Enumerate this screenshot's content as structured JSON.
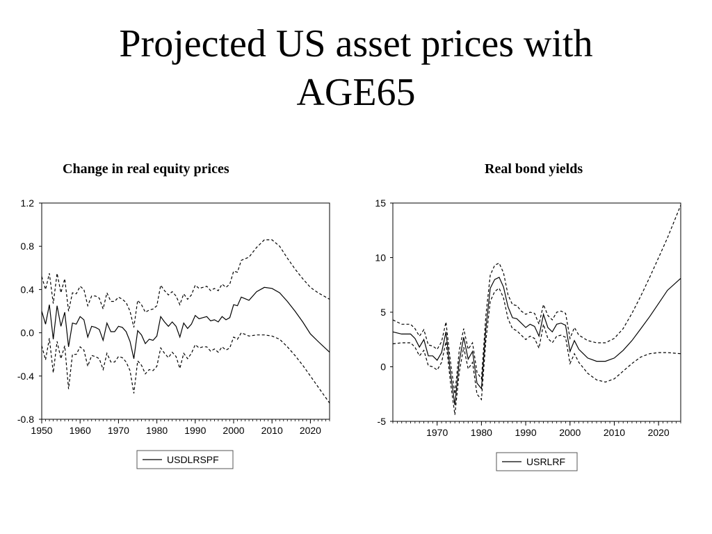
{
  "slide": {
    "title_line1": "Projected US asset prices with",
    "title_line2": "AGE65"
  },
  "chart_data": [
    {
      "type": "line",
      "title": "Change in real equity prices",
      "xlim": [
        1950,
        2025
      ],
      "ylim": [
        -0.8,
        1.2
      ],
      "x_ticks": [
        1950,
        1960,
        1970,
        1980,
        1990,
        2000,
        2010,
        2020
      ],
      "x_tick_labels": [
        "1950",
        "1960",
        "1970",
        "1980",
        "1990",
        "2000",
        "2010",
        "2020"
      ],
      "y_ticks": [
        -0.8,
        -0.4,
        0.0,
        0.4,
        0.8,
        1.2
      ],
      "y_tick_labels": [
        "-0.8",
        "-0.4",
        "0.0",
        "0.4",
        "0.8",
        "1.2"
      ],
      "legend": {
        "placement": "bottom-center",
        "entries": [
          "USDLRSPF"
        ]
      },
      "series": [
        {
          "name": "USDLRSPF",
          "style": "solid",
          "x": [
            1950,
            1951,
            1952,
            1953,
            1954,
            1955,
            1956,
            1957,
            1958,
            1959,
            1960,
            1961,
            1962,
            1963,
            1964,
            1965,
            1966,
            1967,
            1968,
            1969,
            1970,
            1971,
            1972,
            1973,
            1974,
            1975,
            1976,
            1977,
            1978,
            1979,
            1980,
            1981,
            1982,
            1983,
            1984,
            1985,
            1986,
            1987,
            1988,
            1989,
            1990,
            1991,
            1992,
            1993,
            1994,
            1995,
            1996,
            1997,
            1998,
            1999,
            2000,
            2001,
            2002,
            2004,
            2006,
            2008,
            2010,
            2012,
            2014,
            2016,
            2018,
            2020,
            2022,
            2025
          ],
          "y": [
            0.2,
            0.08,
            0.26,
            -0.06,
            0.25,
            0.06,
            0.19,
            -0.13,
            0.09,
            0.08,
            0.15,
            0.12,
            -0.04,
            0.06,
            0.05,
            0.03,
            -0.07,
            0.09,
            0.01,
            0.01,
            0.06,
            0.05,
            0.01,
            -0.08,
            -0.24,
            0.02,
            -0.02,
            -0.1,
            -0.06,
            -0.07,
            -0.03,
            0.15,
            0.1,
            0.06,
            0.1,
            0.06,
            -0.04,
            0.09,
            0.04,
            0.08,
            0.16,
            0.13,
            0.14,
            0.15,
            0.11,
            0.12,
            0.1,
            0.15,
            0.12,
            0.14,
            0.26,
            0.25,
            0.33,
            0.3,
            0.38,
            0.42,
            0.41,
            0.37,
            0.29,
            0.2,
            0.1,
            -0.01,
            -0.08,
            -0.18
          ]
        },
        {
          "name": "",
          "style": "dashed",
          "x": [
            1950,
            1951,
            1952,
            1953,
            1954,
            1955,
            1956,
            1957,
            1958,
            1959,
            1960,
            1961,
            1962,
            1963,
            1964,
            1965,
            1966,
            1967,
            1968,
            1969,
            1970,
            1971,
            1972,
            1973,
            1974,
            1975,
            1976,
            1977,
            1978,
            1979,
            1980,
            1981,
            1982,
            1983,
            1984,
            1985,
            1986,
            1987,
            1988,
            1989,
            1990,
            1991,
            1992,
            1993,
            1994,
            1995,
            1996,
            1997,
            1998,
            1999,
            2000,
            2001,
            2002,
            2004,
            2006,
            2008,
            2010,
            2012,
            2014,
            2016,
            2018,
            2020,
            2022,
            2025
          ],
          "y": [
            0.52,
            0.4,
            0.55,
            0.27,
            0.55,
            0.37,
            0.5,
            0.2,
            0.37,
            0.36,
            0.43,
            0.4,
            0.25,
            0.34,
            0.34,
            0.32,
            0.22,
            0.37,
            0.29,
            0.29,
            0.33,
            0.31,
            0.28,
            0.2,
            0.05,
            0.3,
            0.26,
            0.19,
            0.21,
            0.22,
            0.25,
            0.44,
            0.39,
            0.35,
            0.38,
            0.34,
            0.26,
            0.36,
            0.31,
            0.35,
            0.44,
            0.41,
            0.42,
            0.43,
            0.39,
            0.41,
            0.39,
            0.45,
            0.42,
            0.45,
            0.57,
            0.56,
            0.67,
            0.7,
            0.79,
            0.86,
            0.86,
            0.8,
            0.69,
            0.59,
            0.5,
            0.42,
            0.37,
            0.31
          ]
        },
        {
          "name": "",
          "style": "dashed",
          "x": [
            1950,
            1951,
            1952,
            1953,
            1954,
            1955,
            1956,
            1957,
            1958,
            1959,
            1960,
            1961,
            1962,
            1963,
            1964,
            1965,
            1966,
            1967,
            1968,
            1969,
            1970,
            1971,
            1972,
            1973,
            1974,
            1975,
            1976,
            1977,
            1978,
            1979,
            1980,
            1981,
            1982,
            1983,
            1984,
            1985,
            1986,
            1987,
            1988,
            1989,
            1990,
            1991,
            1992,
            1993,
            1994,
            1995,
            1996,
            1997,
            1998,
            1999,
            2000,
            2001,
            2002,
            2004,
            2006,
            2008,
            2010,
            2012,
            2014,
            2016,
            2018,
            2020,
            2022,
            2025
          ],
          "y": [
            -0.12,
            -0.25,
            -0.05,
            -0.37,
            -0.08,
            -0.24,
            -0.12,
            -0.52,
            -0.2,
            -0.2,
            -0.13,
            -0.16,
            -0.31,
            -0.21,
            -0.22,
            -0.24,
            -0.34,
            -0.19,
            -0.27,
            -0.27,
            -0.22,
            -0.23,
            -0.27,
            -0.35,
            -0.56,
            -0.26,
            -0.3,
            -0.38,
            -0.34,
            -0.35,
            -0.31,
            -0.14,
            -0.19,
            -0.23,
            -0.18,
            -0.22,
            -0.33,
            -0.19,
            -0.24,
            -0.19,
            -0.11,
            -0.14,
            -0.13,
            -0.13,
            -0.17,
            -0.15,
            -0.18,
            -0.13,
            -0.16,
            -0.14,
            -0.04,
            -0.06,
            0.0,
            -0.03,
            -0.02,
            -0.02,
            -0.03,
            -0.06,
            -0.13,
            -0.21,
            -0.3,
            -0.4,
            -0.5,
            -0.65
          ]
        }
      ]
    },
    {
      "type": "line",
      "title": "Real bond yields",
      "xlim": [
        1960,
        2025
      ],
      "ylim": [
        -5,
        15
      ],
      "x_ticks": [
        1970,
        1980,
        1990,
        2000,
        2010,
        2020
      ],
      "x_tick_labels": [
        "1970",
        "1980",
        "1990",
        "2000",
        "2010",
        "2020"
      ],
      "y_ticks": [
        -5,
        0,
        5,
        10,
        15
      ],
      "y_tick_labels": [
        "-5",
        "0",
        "5",
        "10",
        "15"
      ],
      "legend": {
        "placement": "bottom-center",
        "entries": [
          "USRLRF"
        ]
      },
      "series": [
        {
          "name": "USRLRF",
          "style": "solid",
          "x": [
            1960,
            1962,
            1964,
            1965,
            1966,
            1967,
            1968,
            1969,
            1970,
            1971,
            1972,
            1973,
            1974,
            1975,
            1976,
            1977,
            1978,
            1979,
            1980,
            1981,
            1982,
            1983,
            1984,
            1985,
            1986,
            1987,
            1988,
            1989,
            1990,
            1991,
            1992,
            1993,
            1994,
            1995,
            1996,
            1997,
            1998,
            1999,
            2000,
            2001,
            2002,
            2004,
            2006,
            2008,
            2010,
            2012,
            2014,
            2016,
            2018,
            2020,
            2022,
            2025
          ],
          "y": [
            3.2,
            3.0,
            3.0,
            2.6,
            1.8,
            2.5,
            1.0,
            1.0,
            0.6,
            1.3,
            3.2,
            -0.5,
            -3.5,
            0.5,
            2.7,
            0.7,
            1.4,
            -1.5,
            -2.0,
            3.5,
            7.2,
            8.0,
            8.2,
            7.3,
            5.5,
            4.5,
            4.4,
            4.0,
            3.6,
            3.9,
            3.7,
            2.8,
            4.8,
            3.6,
            3.2,
            3.9,
            4.0,
            3.8,
            1.4,
            2.4,
            1.6,
            0.8,
            0.5,
            0.5,
            0.8,
            1.5,
            2.4,
            3.5,
            4.6,
            5.8,
            7.0,
            8.1
          ]
        },
        {
          "name": "",
          "style": "dashed",
          "x": [
            1960,
            1962,
            1964,
            1965,
            1966,
            1967,
            1968,
            1969,
            1970,
            1971,
            1972,
            1973,
            1974,
            1975,
            1976,
            1977,
            1978,
            1979,
            1980,
            1981,
            1982,
            1983,
            1984,
            1985,
            1986,
            1987,
            1988,
            1989,
            1990,
            1991,
            1992,
            1993,
            1994,
            1995,
            1996,
            1997,
            1998,
            1999,
            2000,
            2001,
            2002,
            2004,
            2006,
            2008,
            2010,
            2012,
            2014,
            2016,
            2018,
            2020,
            2022,
            2025
          ],
          "y": [
            4.3,
            3.9,
            3.9,
            3.5,
            2.8,
            3.4,
            2.0,
            1.9,
            1.6,
            2.3,
            4.1,
            0.5,
            -2.5,
            1.5,
            3.5,
            1.6,
            2.2,
            -0.5,
            -1.1,
            4.7,
            8.4,
            9.3,
            9.5,
            8.6,
            6.6,
            5.7,
            5.6,
            5.1,
            4.8,
            5.0,
            4.9,
            3.9,
            5.7,
            4.7,
            4.3,
            5.0,
            5.1,
            4.9,
            2.6,
            3.6,
            2.9,
            2.4,
            2.2,
            2.2,
            2.6,
            3.5,
            4.9,
            6.5,
            8.2,
            10.0,
            11.8,
            14.8
          ]
        },
        {
          "name": "",
          "style": "dashed",
          "x": [
            1960,
            1962,
            1964,
            1965,
            1966,
            1967,
            1968,
            1969,
            1970,
            1971,
            1972,
            1973,
            1974,
            1975,
            1976,
            1977,
            1978,
            1979,
            1980,
            1981,
            1982,
            1983,
            1984,
            1985,
            1986,
            1987,
            1988,
            1989,
            1990,
            1991,
            1992,
            1993,
            1994,
            1995,
            1996,
            1997,
            1998,
            1999,
            2000,
            2001,
            2002,
            2004,
            2006,
            2008,
            2010,
            2012,
            2014,
            2016,
            2018,
            2020,
            2022,
            2025
          ],
          "y": [
            2.1,
            2.2,
            2.2,
            1.8,
            1.0,
            1.5,
            0.1,
            0.0,
            -0.3,
            0.4,
            2.3,
            -1.4,
            -4.4,
            -0.5,
            1.8,
            -0.2,
            0.4,
            -2.5,
            -3.0,
            2.4,
            6.0,
            6.9,
            7.2,
            6.3,
            4.4,
            3.5,
            3.3,
            2.9,
            2.5,
            2.8,
            2.6,
            1.7,
            3.9,
            2.6,
            2.2,
            2.8,
            2.9,
            2.7,
            0.3,
            1.2,
            0.4,
            -0.6,
            -1.2,
            -1.4,
            -1.1,
            -0.4,
            0.3,
            0.9,
            1.2,
            1.3,
            1.3,
            1.2
          ]
        }
      ]
    }
  ]
}
